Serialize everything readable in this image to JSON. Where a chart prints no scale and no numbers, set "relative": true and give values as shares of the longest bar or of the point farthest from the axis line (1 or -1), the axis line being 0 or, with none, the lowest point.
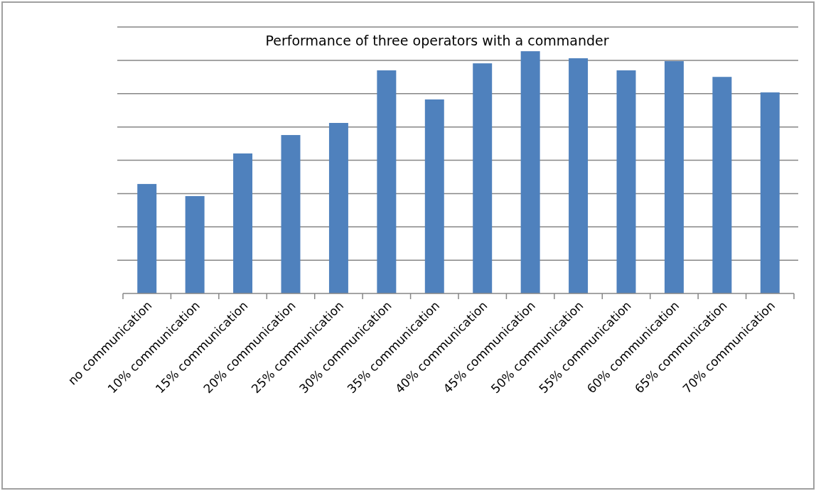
{
  "chart_data": {
    "type": "bar",
    "title": "Performance of three operators with a commander",
    "categories": [
      "no communication",
      "10% communication",
      "15% communication",
      "20% communication",
      "25% communication",
      "30% communication",
      "35% communication",
      "40% communication",
      "45% communication",
      "50% communication",
      "55% communication",
      "60% communication",
      "65% communication",
      "70% communication"
    ],
    "values": [
      0.452,
      0.402,
      0.578,
      0.654,
      0.704,
      0.921,
      0.801,
      0.95,
      1,
      0.971,
      0.921,
      0.959,
      0.894,
      0.83
    ],
    "color": "#4f81bd",
    "relative": true,
    "grid": "y"
  }
}
